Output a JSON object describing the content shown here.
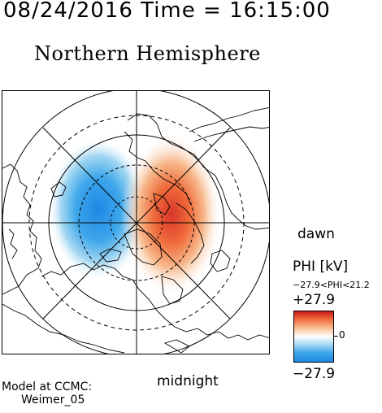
{
  "header": {
    "timestamp": "08/24/2016 Time = 16:15:00",
    "title": "Northern Hemisphere"
  },
  "map": {
    "orientation_labels": {
      "right": "dawn",
      "bottom": "midnight"
    },
    "potential_pattern": {
      "dusk_cell": "negative (blue)",
      "dawn_cell": "positive (red)"
    }
  },
  "colorbar": {
    "title": "PHI [kV]",
    "range_text": "−27.9<PHI<21.2",
    "max_label": "+27.9",
    "zero_label": "0",
    "min_label": "−27.9",
    "max_color": "#c61a1c",
    "mid_color": "#ffffff",
    "min_color": "#1e88e5"
  },
  "footer": {
    "model_line1": "Model at CCMC:",
    "model_line2": "Weimer_05"
  }
}
